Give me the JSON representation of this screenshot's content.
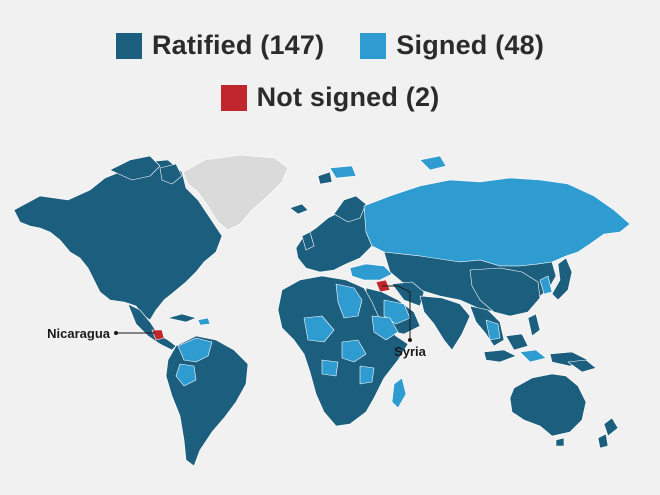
{
  "legend": {
    "ratified": {
      "label": "Ratified (147)",
      "color": "#1b5e7e"
    },
    "signed": {
      "label": "Signed (48)",
      "color": "#2e9bd1"
    },
    "not_signed": {
      "label": "Not signed (2)",
      "color": "#c0272d"
    }
  },
  "colors": {
    "background": "#f1f1f1",
    "no_data": "#dadada",
    "border": "#ffffff"
  },
  "callouts": {
    "nicaragua": "Nicaragua",
    "syria": "Syria"
  }
}
